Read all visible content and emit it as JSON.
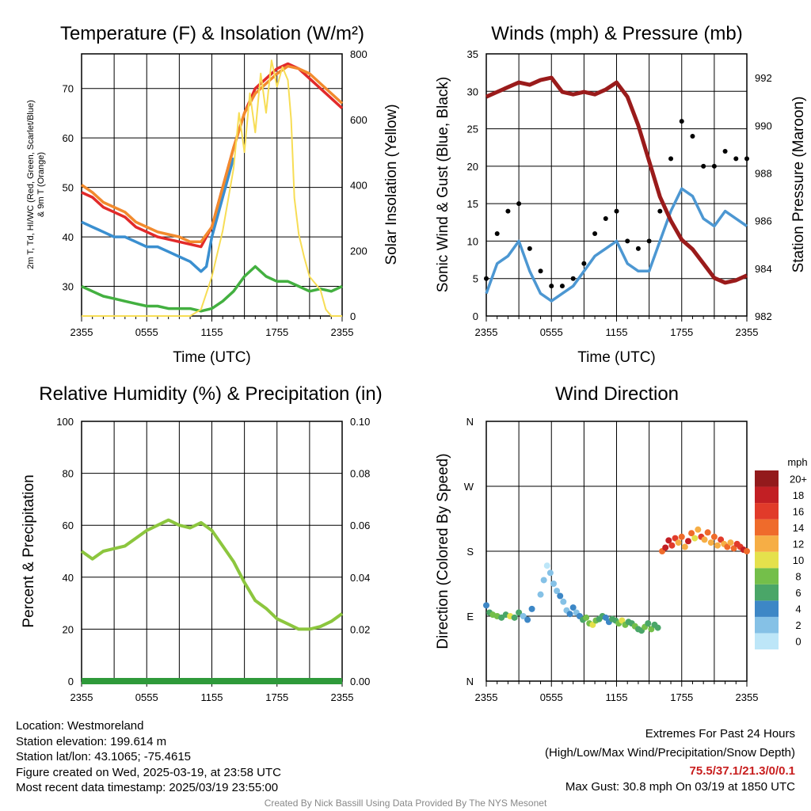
{
  "footer": {
    "location": "Location: Westmoreland",
    "elevation": "Station elevation: 199.614 m",
    "latlon": "Station lat/lon: 43.1065; -75.4615",
    "created": "Figure created on Wed, 2025-03-19, at 23:58 UTC",
    "recent": "Most recent data timestamp: 2025/03/19 23:55:00",
    "extremes_title": "Extremes For Past 24 Hours",
    "extremes_sub": "(High/Low/Max Wind/Precipitation/Snow Depth)",
    "extremes_values": "75.5/37.1/21.3/0/0.1",
    "max_gust": "Max Gust: 30.8 mph On 03/19 at 1850 UTC",
    "credit": "Created By Nick Bassill Using Data Provided By The NYS Mesonet"
  },
  "colors": {
    "temp": "#e22a2a",
    "dewpoint": "#3a8fd0",
    "wind_chill": "#43b040",
    "temp_9m": "#f28a2d",
    "solar": "#f7dd55",
    "wind": "#4c97d2",
    "gust": "#000000",
    "pressure": "#9a1b1b",
    "rh": "#8cc63e",
    "precip": "#2e9a3a",
    "extremes": "#c81e1e"
  },
  "chart_data": [
    {
      "type": "line",
      "title": "Temperature (F) & Insolation (W/m²)",
      "xlabel": "Time (UTC)",
      "ylabel_line1": "2m T, Td, HI/WC (Red, Green, Scarlet/Blue)",
      "ylabel_line2": "& 9m T (Orange)",
      "y2label": "Solar Insolation (Yellow)",
      "x_ticks": [
        "2355",
        "0555",
        "1155",
        "1755",
        "2355"
      ],
      "ylim": [
        24,
        77
      ],
      "y_ticks": [
        30,
        40,
        50,
        60,
        70
      ],
      "y2lim": [
        0,
        800
      ],
      "y2_ticks": [
        0,
        200,
        400,
        600,
        800
      ],
      "series": [
        {
          "name": "2m T",
          "color_key": "temp",
          "x_hours": [
            0,
            1,
            2,
            3,
            4,
            5,
            6,
            7,
            8,
            9,
            10,
            11,
            11.5,
            12,
            13,
            14,
            15,
            16,
            17,
            18,
            19,
            20,
            21,
            22,
            23,
            24
          ],
          "values": [
            49,
            48,
            46,
            45,
            44,
            42,
            41,
            40,
            39.5,
            39,
            38.5,
            38,
            40,
            42,
            50,
            58,
            65,
            70,
            72,
            74,
            75,
            74,
            72,
            70,
            68,
            66
          ]
        },
        {
          "name": "2m Td",
          "color_key": "wind_chill",
          "x_hours": [
            0,
            1,
            2,
            3,
            4,
            5,
            6,
            7,
            8,
            9,
            10,
            11,
            12,
            13,
            14,
            15,
            16,
            17,
            18,
            19,
            20,
            21,
            22,
            23,
            24
          ],
          "values": [
            30,
            29,
            28,
            27.5,
            27,
            26.5,
            26,
            26,
            25.5,
            25.5,
            25.5,
            25,
            25.5,
            27,
            29,
            32,
            34,
            32,
            31,
            31,
            30,
            29,
            29.5,
            29,
            30
          ]
        },
        {
          "name": "Wind Chill",
          "color_key": "dewpoint",
          "x_hours": [
            0,
            1,
            2,
            3,
            4,
            5,
            6,
            7,
            8,
            9,
            10,
            11,
            11.5,
            12,
            13,
            14
          ],
          "values": [
            43,
            42,
            41,
            40,
            40,
            39,
            38,
            38,
            37,
            36,
            35,
            33,
            34,
            40,
            48,
            56
          ]
        },
        {
          "name": "9m T",
          "color_key": "temp_9m",
          "x_hours": [
            0,
            1,
            2,
            3,
            4,
            5,
            6,
            7,
            8,
            9,
            10,
            11,
            12,
            13,
            14,
            15,
            16,
            17,
            18,
            19,
            20,
            21,
            22,
            23,
            24
          ],
          "values": [
            50.5,
            49,
            47,
            46,
            45,
            43,
            42,
            41,
            40.5,
            40,
            39,
            39,
            42,
            50,
            58,
            65,
            69,
            71,
            73,
            74.5,
            74,
            73,
            71,
            69,
            67
          ]
        },
        {
          "name": "Solar",
          "color_key": "solar",
          "axis": "y2",
          "x_hours": [
            0,
            10,
            11,
            12,
            13,
            14,
            14.5,
            15,
            15.5,
            16,
            16.5,
            17,
            17.5,
            18,
            18.5,
            19,
            19.3,
            19.6,
            20,
            20.5,
            21,
            22,
            22.5,
            23,
            24
          ],
          "values": [
            0,
            0,
            20,
            120,
            260,
            450,
            620,
            500,
            680,
            560,
            740,
            620,
            780,
            700,
            760,
            720,
            600,
            360,
            250,
            180,
            120,
            80,
            20,
            0,
            0
          ]
        }
      ]
    },
    {
      "type": "line",
      "title": "Winds (mph) & Pressure (mb)",
      "xlabel": "Time (UTC)",
      "ylabel": "Sonic Wind & Gust (Blue, Black)",
      "y2label": "Station Pressure (Maroon)",
      "x_ticks": [
        "2355",
        "0555",
        "1155",
        "1755",
        "2355"
      ],
      "ylim": [
        0,
        35
      ],
      "y_ticks": [
        0,
        5,
        10,
        15,
        20,
        25,
        30,
        35
      ],
      "y2lim": [
        982,
        993
      ],
      "y2_ticks": [
        982,
        984,
        986,
        988,
        990,
        992
      ],
      "series": [
        {
          "name": "Sonic Wind",
          "color_key": "wind",
          "x_hours": [
            0,
            1,
            2,
            3,
            4,
            5,
            6,
            7,
            8,
            9,
            10,
            11,
            12,
            13,
            14,
            15,
            16,
            17,
            18,
            19,
            20,
            21,
            22,
            23,
            24
          ],
          "values": [
            3,
            7,
            8,
            10,
            6,
            3,
            2,
            3,
            4,
            6,
            8,
            9,
            10,
            7,
            6,
            6,
            10,
            14,
            17,
            16,
            13,
            12,
            14,
            13,
            12
          ]
        },
        {
          "name": "Gust",
          "color_key": "gust",
          "x_hours": [
            0,
            1,
            2,
            3,
            4,
            5,
            6,
            7,
            8,
            9,
            10,
            11,
            12,
            13,
            14,
            15,
            16,
            17,
            18,
            19,
            20,
            21,
            22,
            23,
            24
          ],
          "values": [
            5,
            11,
            14,
            15,
            9,
            6,
            4,
            4,
            5,
            7,
            11,
            13,
            14,
            10,
            9,
            10,
            14,
            21,
            26,
            24,
            20,
            20,
            22,
            21,
            21
          ]
        },
        {
          "name": "Pressure",
          "color_key": "pressure",
          "axis": "y2",
          "x_hours": [
            0,
            1,
            2,
            3,
            4,
            5,
            6,
            7,
            8,
            9,
            10,
            11,
            12,
            13,
            14,
            15,
            16,
            17,
            18,
            19,
            20,
            21,
            22,
            23,
            24
          ],
          "values": [
            991.2,
            991.4,
            991.6,
            991.8,
            991.7,
            991.9,
            992.0,
            991.4,
            991.3,
            991.4,
            991.3,
            991.5,
            991.8,
            991.2,
            990.0,
            988.5,
            987.0,
            986.0,
            985.2,
            984.8,
            984.2,
            983.6,
            983.4,
            983.5,
            983.7
          ]
        }
      ]
    },
    {
      "type": "line",
      "title": "Relative Humidity (%) & Precipitation (in)",
      "ylabel": "Percent & Precipitation",
      "x_ticks": [
        "2355",
        "0555",
        "1155",
        "1755",
        "2355"
      ],
      "ylim": [
        0,
        100
      ],
      "y_ticks": [
        0,
        20,
        40,
        60,
        80,
        100
      ],
      "y2lim": [
        0,
        0.1
      ],
      "y2_ticks": [
        "0.00",
        "0.02",
        "0.04",
        "0.06",
        "0.08",
        "0.10"
      ],
      "series": [
        {
          "name": "RH",
          "color_key": "rh",
          "x_hours": [
            0,
            1,
            2,
            3,
            4,
            5,
            6,
            7,
            8,
            9,
            10,
            11,
            12,
            13,
            14,
            15,
            16,
            17,
            18,
            19,
            20,
            21,
            22,
            23,
            24
          ],
          "values": [
            50,
            47,
            50,
            51,
            52,
            55,
            58,
            60,
            62,
            60,
            59,
            61,
            58,
            52,
            46,
            38,
            31,
            28,
            24,
            22,
            20,
            20,
            21,
            23,
            26
          ]
        },
        {
          "name": "Precipitation",
          "color_key": "precip",
          "x_hours": [
            0,
            24
          ],
          "values": [
            0,
            0
          ]
        }
      ]
    },
    {
      "type": "scatter",
      "title": "Wind Direction",
      "ylabel": "Direction (Colored By Speed)",
      "x_ticks": [
        "2355",
        "0555",
        "1155",
        "1755",
        "2355"
      ],
      "y_ticks": [
        "N",
        "E",
        "S",
        "W",
        "N"
      ],
      "colorbar_title": "mph",
      "colorbar_labels": [
        "0",
        "2",
        "4",
        "6",
        "8",
        "10",
        "12",
        "14",
        "16",
        "18",
        "20+"
      ],
      "colorbar_colors": [
        "#bde6f8",
        "#85c1e6",
        "#3d87c6",
        "#4aa668",
        "#74bf4a",
        "#e5e14c",
        "#f6ae45",
        "#ef6b2b",
        "#e13b2a",
        "#c21f24",
        "#931a1c"
      ],
      "points_dir_deg": [
        [
          0.0,
          105,
          4
        ],
        [
          0.3,
          95,
          6
        ],
        [
          0.6,
          92,
          8
        ],
        [
          1.0,
          90,
          9
        ],
        [
          1.4,
          88,
          7
        ],
        [
          1.8,
          92,
          6
        ],
        [
          2.2,
          90,
          10
        ],
        [
          2.6,
          88,
          7
        ],
        [
          3.0,
          95,
          6
        ],
        [
          3.4,
          90,
          3
        ],
        [
          3.8,
          85,
          4
        ],
        [
          4.2,
          100,
          5
        ],
        [
          5.0,
          120,
          3
        ],
        [
          5.3,
          140,
          2
        ],
        [
          5.6,
          160,
          1
        ],
        [
          5.9,
          150,
          2
        ],
        [
          6.2,
          135,
          3
        ],
        [
          6.5,
          125,
          2
        ],
        [
          6.8,
          118,
          4
        ],
        [
          7.1,
          110,
          2
        ],
        [
          7.4,
          98,
          3
        ],
        [
          7.7,
          93,
          4
        ],
        [
          8.0,
          102,
          5
        ],
        [
          8.3,
          95,
          3
        ],
        [
          8.6,
          90,
          5
        ],
        [
          8.9,
          85,
          7
        ],
        [
          9.2,
          88,
          8
        ],
        [
          9.5,
          80,
          9
        ],
        [
          9.8,
          78,
          10
        ],
        [
          10.1,
          84,
          8
        ],
        [
          10.4,
          86,
          7
        ],
        [
          10.7,
          90,
          6
        ],
        [
          11.0,
          88,
          4
        ],
        [
          11.3,
          82,
          5
        ],
        [
          11.6,
          86,
          6
        ],
        [
          11.9,
          84,
          7
        ],
        [
          12.2,
          80,
          8
        ],
        [
          12.5,
          84,
          10
        ],
        [
          12.8,
          78,
          8
        ],
        [
          13.1,
          82,
          7
        ],
        [
          13.4,
          80,
          6
        ],
        [
          13.7,
          76,
          8
        ],
        [
          14.0,
          72,
          7
        ],
        [
          14.3,
          70,
          6
        ],
        [
          14.6,
          75,
          8
        ],
        [
          14.9,
          80,
          7
        ],
        [
          15.2,
          72,
          8
        ],
        [
          15.5,
          78,
          6
        ],
        [
          15.8,
          74,
          7
        ],
        [
          16.2,
          180,
          14
        ],
        [
          16.5,
          185,
          18
        ],
        [
          16.8,
          195,
          19
        ],
        [
          17.1,
          188,
          16
        ],
        [
          17.4,
          198,
          17
        ],
        [
          17.7,
          192,
          13
        ],
        [
          18.0,
          200,
          15
        ],
        [
          18.3,
          186,
          12
        ],
        [
          18.6,
          194,
          18
        ],
        [
          18.9,
          205,
          14
        ],
        [
          19.2,
          198,
          11
        ],
        [
          19.5,
          210,
          12
        ],
        [
          19.8,
          200,
          16
        ],
        [
          20.1,
          196,
          13
        ],
        [
          20.4,
          206,
          15
        ],
        [
          20.7,
          192,
          12
        ],
        [
          21.0,
          200,
          14
        ],
        [
          21.3,
          188,
          13
        ],
        [
          21.6,
          196,
          16
        ],
        [
          21.9,
          190,
          12
        ],
        [
          22.2,
          186,
          14
        ],
        [
          22.5,
          192,
          13
        ],
        [
          22.8,
          184,
          15
        ],
        [
          23.1,
          190,
          16
        ],
        [
          23.4,
          186,
          17
        ],
        [
          23.7,
          182,
          18
        ],
        [
          24.0,
          180,
          14
        ]
      ]
    }
  ]
}
